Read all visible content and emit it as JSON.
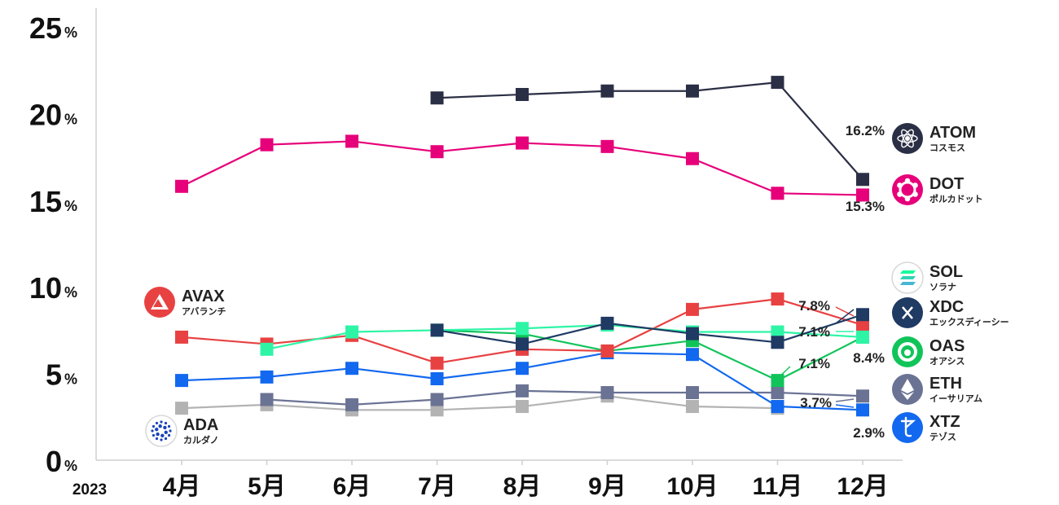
{
  "chart_data": {
    "type": "line",
    "year_label": "2023",
    "categories": [
      "4月",
      "5月",
      "6月",
      "7月",
      "8月",
      "9月",
      "10月",
      "11月",
      "12月"
    ],
    "ylim": [
      0,
      25
    ],
    "yticks": [
      0,
      5,
      10,
      15,
      20,
      25
    ],
    "ytick_unit": "%",
    "series": [
      {
        "name": "ATOM",
        "subname": "コスモス",
        "color": "#2b2f45",
        "icon": "atom-icon",
        "values": [
          null,
          null,
          null,
          20.9,
          21.1,
          21.3,
          21.3,
          21.8,
          16.2
        ],
        "end_label": "16.2%"
      },
      {
        "name": "DOT",
        "subname": "ポルカドット",
        "color": "#e6007a",
        "icon": "polkadot-icon",
        "values": [
          15.8,
          18.2,
          18.4,
          17.8,
          18.3,
          18.1,
          17.4,
          15.4,
          15.3
        ],
        "end_label": "15.3%"
      },
      {
        "name": "AVAX",
        "subname": "アバランチ",
        "color": "#e84142",
        "icon": "avalanche-icon",
        "values": [
          7.1,
          6.7,
          7.2,
          5.6,
          6.4,
          6.3,
          8.7,
          9.3,
          7.8
        ],
        "end_label": "7.8%"
      },
      {
        "name": "SOL",
        "subname": "ソラナ",
        "color": "#2ef5a6",
        "icon": "solana-icon",
        "values": [
          null,
          6.4,
          7.4,
          7.5,
          7.6,
          7.8,
          7.4,
          7.4,
          7.1
        ],
        "end_label": "7.1%"
      },
      {
        "name": "XDC",
        "subname": "エックスディーシー",
        "color": "#1f3a63",
        "icon": "xdc-icon",
        "values": [
          null,
          null,
          null,
          7.5,
          6.7,
          7.9,
          7.3,
          6.8,
          8.4
        ],
        "end_label": "8.4%"
      },
      {
        "name": "OAS",
        "subname": "オアシス",
        "color": "#11c45a",
        "icon": "oasys-icon",
        "values": [
          null,
          null,
          null,
          7.5,
          7.3,
          6.3,
          6.9,
          4.6,
          7.1
        ],
        "end_label": "7.1%"
      },
      {
        "name": "ETH",
        "subname": "イーサリアム",
        "color": "#6b7394",
        "icon": "ethereum-icon",
        "values": [
          null,
          3.5,
          3.2,
          3.5,
          4.0,
          3.9,
          3.9,
          3.9,
          3.7
        ],
        "end_label": "3.7%"
      },
      {
        "name": "XTZ",
        "subname": "テゾス",
        "color": "#1268ef",
        "icon": "tezos-icon",
        "values": [
          4.6,
          4.8,
          5.3,
          4.7,
          5.3,
          6.2,
          6.1,
          3.1,
          2.9
        ],
        "end_label": "2.9%"
      },
      {
        "name": "ADA",
        "subname": "カルダノ",
        "color": "#b3b3b3",
        "icon": "cardano-icon",
        "values": [
          3.0,
          3.2,
          2.9,
          2.9,
          3.1,
          3.7,
          3.1,
          3.0,
          null
        ],
        "end_label": ""
      }
    ]
  }
}
